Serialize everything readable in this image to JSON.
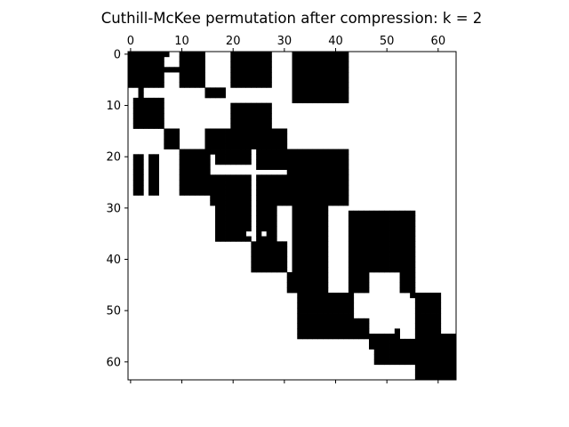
{
  "chart_data": {
    "type": "heatmap",
    "title": "Cuthill-McKee permutation after compression: k = 2",
    "xlabel": "",
    "ylabel": "",
    "xlim": [
      -0.5,
      63.5
    ],
    "ylim": [
      63.5,
      -0.5
    ],
    "x_tick_position": "top",
    "y_tick_position": "left",
    "x_ticks": [
      0,
      10,
      20,
      30,
      40,
      50,
      60
    ],
    "y_ticks": [
      0,
      10,
      20,
      30,
      40,
      50,
      60
    ],
    "grid": false,
    "legend": "none",
    "colors": {
      "filled": "#000000",
      "empty": "#ffffff"
    },
    "filled_blocks": [
      {
        "rows": [
          0,
          7
        ],
        "cols": [
          0,
          7
        ]
      },
      {
        "rows": [
          0,
          1
        ],
        "cols": [
          0,
          15
        ]
      },
      {
        "rows": [
          3,
          4
        ],
        "cols": [
          7,
          10
        ]
      },
      {
        "rows": [
          0,
          7
        ],
        "cols": [
          10,
          15
        ]
      },
      {
        "rows": [
          0,
          7
        ],
        "cols": [
          20,
          28
        ]
      },
      {
        "rows": [
          0,
          10
        ],
        "cols": [
          32,
          43
        ]
      },
      {
        "rows": [
          7,
          9
        ],
        "cols": [
          2,
          3
        ]
      },
      {
        "rows": [
          7,
          9
        ],
        "cols": [
          15,
          19
        ]
      },
      {
        "rows": [
          9,
          15
        ],
        "cols": [
          1,
          7
        ]
      },
      {
        "rows": [
          10,
          15
        ],
        "cols": [
          20,
          28
        ]
      },
      {
        "rows": [
          15,
          19
        ],
        "cols": [
          7,
          10
        ]
      },
      {
        "rows": [
          15,
          20
        ],
        "cols": [
          15,
          24
        ]
      },
      {
        "rows": [
          15,
          19
        ],
        "cols": [
          24,
          31
        ]
      },
      {
        "rows": [
          20,
          28
        ],
        "cols": [
          1,
          3
        ]
      },
      {
        "rows": [
          20,
          28
        ],
        "cols": [
          4,
          6
        ]
      },
      {
        "rows": [
          19,
          28
        ],
        "cols": [
          10,
          16
        ]
      },
      {
        "rows": [
          19,
          22
        ],
        "cols": [
          17,
          24
        ]
      },
      {
        "rows": [
          19,
          23
        ],
        "cols": [
          25,
          31
        ]
      },
      {
        "rows": [
          19,
          30
        ],
        "cols": [
          31,
          43
        ]
      },
      {
        "rows": [
          24,
          30
        ],
        "cols": [
          16,
          24
        ]
      },
      {
        "rows": [
          24,
          30
        ],
        "cols": [
          25,
          31
        ]
      },
      {
        "rows": [
          30,
          37
        ],
        "cols": [
          17,
          24
        ]
      },
      {
        "rows": [
          30,
          37
        ],
        "cols": [
          25,
          29
        ]
      },
      {
        "rows": [
          30,
          43
        ],
        "cols": [
          32,
          39
        ]
      },
      {
        "rows": [
          37,
          43
        ],
        "cols": [
          24,
          31
        ]
      },
      {
        "rows": [
          31,
          43
        ],
        "cols": [
          43,
          56
        ]
      },
      {
        "rows": [
          43,
          47
        ],
        "cols": [
          31,
          39
        ]
      },
      {
        "rows": [
          43,
          47
        ],
        "cols": [
          43,
          47
        ]
      },
      {
        "rows": [
          43,
          47
        ],
        "cols": [
          53,
          56
        ]
      },
      {
        "rows": [
          47,
          56
        ],
        "cols": [
          33,
          44
        ]
      },
      {
        "rows": [
          47,
          56
        ],
        "cols": [
          56,
          61
        ]
      },
      {
        "rows": [
          52,
          56
        ],
        "cols": [
          33,
          47
        ]
      },
      {
        "rows": [
          55,
          58
        ],
        "cols": [
          47,
          52
        ]
      },
      {
        "rows": [
          56,
          61
        ],
        "cols": [
          48,
          56
        ]
      },
      {
        "rows": [
          55,
          64
        ],
        "cols": [
          56,
          64
        ]
      }
    ],
    "empty_blocks": [
      {
        "rows": [
          0,
          1
        ],
        "cols": [
          8,
          10
        ]
      },
      {
        "rows": [
          35,
          36
        ],
        "cols": [
          23,
          24
        ]
      },
      {
        "rows": [
          35,
          36
        ],
        "cols": [
          26,
          27
        ]
      },
      {
        "rows": [
          54,
          55
        ],
        "cols": [
          55,
          56
        ]
      }
    ],
    "extra_points": [
      {
        "row": 15,
        "col": 15
      },
      {
        "row": 47,
        "col": 55
      },
      {
        "row": 48,
        "col": 56
      },
      {
        "row": 54,
        "col": 52
      },
      {
        "row": 55,
        "col": 52
      }
    ]
  }
}
